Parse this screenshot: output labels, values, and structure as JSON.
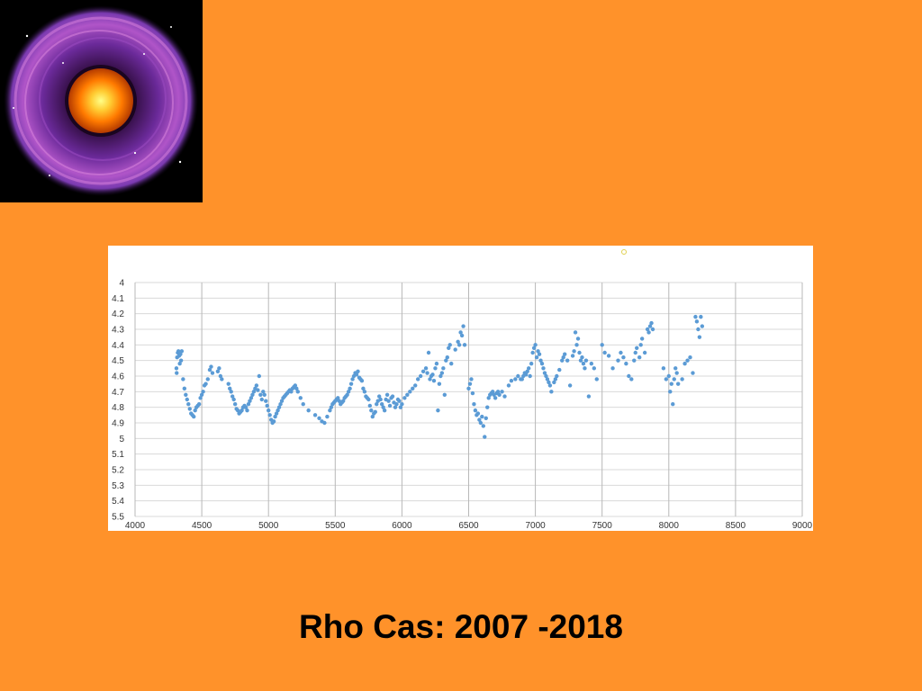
{
  "slide": {
    "caption": "Rho Cas: 2007 -2018",
    "background_color": "#FF922A",
    "image_icon": "nebula-star-image"
  },
  "chart_data": {
    "type": "scatter",
    "title": "",
    "xlabel": "",
    "ylabel": "",
    "xlim": [
      4000,
      9000
    ],
    "ylim": [
      5.5,
      4.0
    ],
    "y_inverted": true,
    "grid": true,
    "marker_color": "#5B9BD5",
    "x_ticks": [
      "4000",
      "4500",
      "5000",
      "5500",
      "6000",
      "6500",
      "7000",
      "7500",
      "8000",
      "8500",
      "9000"
    ],
    "y_ticks": [
      "4",
      "4.1",
      "4.2",
      "4.3",
      "4.4",
      "4.5",
      "4.6",
      "4.7",
      "4.8",
      "4.9",
      "5",
      "5.1",
      "5.2",
      "5.3",
      "5.4",
      "5.5"
    ],
    "series": [
      {
        "points": [
          [
            4310,
            4.55
          ],
          [
            4315,
            4.48
          ],
          [
            4320,
            4.45
          ],
          [
            4325,
            4.44
          ],
          [
            4330,
            4.47
          ],
          [
            4335,
            4.52
          ],
          [
            4312,
            4.58
          ],
          [
            4340,
            4.46
          ],
          [
            4345,
            4.5
          ],
          [
            4350,
            4.44
          ],
          [
            4360,
            4.62
          ],
          [
            4370,
            4.68
          ],
          [
            4380,
            4.72
          ],
          [
            4390,
            4.75
          ],
          [
            4400,
            4.78
          ],
          [
            4410,
            4.81
          ],
          [
            4420,
            4.84
          ],
          [
            4430,
            4.85
          ],
          [
            4440,
            4.86
          ],
          [
            4450,
            4.82
          ],
          [
            4460,
            4.8
          ],
          [
            4470,
            4.79
          ],
          [
            4480,
            4.78
          ],
          [
            4490,
            4.74
          ],
          [
            4500,
            4.72
          ],
          [
            4510,
            4.7
          ],
          [
            4520,
            4.66
          ],
          [
            4530,
            4.65
          ],
          [
            4545,
            4.62
          ],
          [
            4560,
            4.56
          ],
          [
            4570,
            4.54
          ],
          [
            4580,
            4.58
          ],
          [
            4620,
            4.57
          ],
          [
            4630,
            4.55
          ],
          [
            4640,
            4.6
          ],
          [
            4650,
            4.62
          ],
          [
            4700,
            4.65
          ],
          [
            4710,
            4.68
          ],
          [
            4720,
            4.7
          ],
          [
            4730,
            4.73
          ],
          [
            4740,
            4.75
          ],
          [
            4750,
            4.78
          ],
          [
            4760,
            4.81
          ],
          [
            4770,
            4.82
          ],
          [
            4780,
            4.84
          ],
          [
            4790,
            4.83
          ],
          [
            4800,
            4.82
          ],
          [
            4810,
            4.8
          ],
          [
            4820,
            4.79
          ],
          [
            4830,
            4.8
          ],
          [
            4840,
            4.82
          ],
          [
            4850,
            4.78
          ],
          [
            4860,
            4.76
          ],
          [
            4870,
            4.74
          ],
          [
            4880,
            4.72
          ],
          [
            4890,
            4.7
          ],
          [
            4900,
            4.68
          ],
          [
            4910,
            4.66
          ],
          [
            4920,
            4.69
          ],
          [
            4930,
            4.6
          ],
          [
            4940,
            4.72
          ],
          [
            4950,
            4.75
          ],
          [
            4960,
            4.7
          ],
          [
            4970,
            4.72
          ],
          [
            4980,
            4.76
          ],
          [
            4990,
            4.79
          ],
          [
            5000,
            4.82
          ],
          [
            5010,
            4.85
          ],
          [
            5020,
            4.88
          ],
          [
            5030,
            4.9
          ],
          [
            5040,
            4.89
          ],
          [
            5050,
            4.86
          ],
          [
            5060,
            4.84
          ],
          [
            5070,
            4.82
          ],
          [
            5080,
            4.8
          ],
          [
            5090,
            4.78
          ],
          [
            5100,
            4.76
          ],
          [
            5110,
            4.74
          ],
          [
            5120,
            4.73
          ],
          [
            5130,
            4.72
          ],
          [
            5140,
            4.71
          ],
          [
            5150,
            4.7
          ],
          [
            5160,
            4.69
          ],
          [
            5170,
            4.7
          ],
          [
            5180,
            4.68
          ],
          [
            5190,
            4.67
          ],
          [
            5200,
            4.66
          ],
          [
            5210,
            4.68
          ],
          [
            5220,
            4.7
          ],
          [
            5240,
            4.74
          ],
          [
            5260,
            4.78
          ],
          [
            5300,
            4.82
          ],
          [
            5350,
            4.85
          ],
          [
            5380,
            4.87
          ],
          [
            5400,
            4.89
          ],
          [
            5420,
            4.9
          ],
          [
            5440,
            4.86
          ],
          [
            5460,
            4.82
          ],
          [
            5470,
            4.8
          ],
          [
            5480,
            4.78
          ],
          [
            5490,
            4.77
          ],
          [
            5500,
            4.76
          ],
          [
            5510,
            4.75
          ],
          [
            5520,
            4.74
          ],
          [
            5530,
            4.76
          ],
          [
            5540,
            4.78
          ],
          [
            5550,
            4.77
          ],
          [
            5560,
            4.76
          ],
          [
            5570,
            4.74
          ],
          [
            5580,
            4.73
          ],
          [
            5590,
            4.72
          ],
          [
            5600,
            4.7
          ],
          [
            5610,
            4.68
          ],
          [
            5620,
            4.65
          ],
          [
            5630,
            4.62
          ],
          [
            5640,
            4.6
          ],
          [
            5650,
            4.58
          ],
          [
            5660,
            4.59
          ],
          [
            5670,
            4.57
          ],
          [
            5680,
            4.61
          ],
          [
            5690,
            4.62
          ],
          [
            5700,
            4.63
          ],
          [
            5710,
            4.68
          ],
          [
            5720,
            4.7
          ],
          [
            5730,
            4.73
          ],
          [
            5740,
            4.74
          ],
          [
            5750,
            4.75
          ],
          [
            5760,
            4.79
          ],
          [
            5770,
            4.82
          ],
          [
            5780,
            4.86
          ],
          [
            5790,
            4.84
          ],
          [
            5800,
            4.83
          ],
          [
            5810,
            4.78
          ],
          [
            5820,
            4.76
          ],
          [
            5830,
            4.73
          ],
          [
            5840,
            4.75
          ],
          [
            5850,
            4.78
          ],
          [
            5860,
            4.8
          ],
          [
            5870,
            4.82
          ],
          [
            5880,
            4.75
          ],
          [
            5890,
            4.72
          ],
          [
            5900,
            4.76
          ],
          [
            5910,
            4.79
          ],
          [
            5920,
            4.74
          ],
          [
            5930,
            4.73
          ],
          [
            5940,
            4.77
          ],
          [
            5950,
            4.8
          ],
          [
            5960,
            4.78
          ],
          [
            5970,
            4.75
          ],
          [
            5980,
            4.76
          ],
          [
            5990,
            4.8
          ],
          [
            6000,
            4.78
          ],
          [
            6020,
            4.74
          ],
          [
            6040,
            4.72
          ],
          [
            6060,
            4.7
          ],
          [
            6080,
            4.68
          ],
          [
            6100,
            4.66
          ],
          [
            6120,
            4.62
          ],
          [
            6140,
            4.6
          ],
          [
            6160,
            4.57
          ],
          [
            6180,
            4.55
          ],
          [
            6190,
            4.58
          ],
          [
            6200,
            4.45
          ],
          [
            6210,
            4.62
          ],
          [
            6220,
            4.6
          ],
          [
            6230,
            4.59
          ],
          [
            6240,
            4.63
          ],
          [
            6250,
            4.55
          ],
          [
            6260,
            4.52
          ],
          [
            6270,
            4.82
          ],
          [
            6280,
            4.65
          ],
          [
            6290,
            4.6
          ],
          [
            6300,
            4.58
          ],
          [
            6310,
            4.55
          ],
          [
            6320,
            4.72
          ],
          [
            6330,
            4.5
          ],
          [
            6340,
            4.48
          ],
          [
            6350,
            4.42
          ],
          [
            6360,
            4.4
          ],
          [
            6370,
            4.52
          ],
          [
            6400,
            4.43
          ],
          [
            6420,
            4.38
          ],
          [
            6430,
            4.4
          ],
          [
            6440,
            4.32
          ],
          [
            6450,
            4.34
          ],
          [
            6460,
            4.28
          ],
          [
            6470,
            4.4
          ],
          [
            6500,
            4.68
          ],
          [
            6510,
            4.65
          ],
          [
            6520,
            4.62
          ],
          [
            6530,
            4.71
          ],
          [
            6540,
            4.78
          ],
          [
            6550,
            4.82
          ],
          [
            6560,
            4.85
          ],
          [
            6570,
            4.84
          ],
          [
            6580,
            4.88
          ],
          [
            6590,
            4.9
          ],
          [
            6600,
            4.86
          ],
          [
            6610,
            4.92
          ],
          [
            6620,
            4.99
          ],
          [
            6630,
            4.87
          ],
          [
            6640,
            4.8
          ],
          [
            6650,
            4.74
          ],
          [
            6660,
            4.72
          ],
          [
            6670,
            4.71
          ],
          [
            6680,
            4.7
          ],
          [
            6690,
            4.72
          ],
          [
            6700,
            4.74
          ],
          [
            6710,
            4.71
          ],
          [
            6720,
            4.7
          ],
          [
            6730,
            4.72
          ],
          [
            6750,
            4.7
          ],
          [
            6770,
            4.73
          ],
          [
            6800,
            4.66
          ],
          [
            6820,
            4.63
          ],
          [
            6850,
            4.62
          ],
          [
            6870,
            4.6
          ],
          [
            6890,
            4.62
          ],
          [
            6900,
            4.62
          ],
          [
            6910,
            4.6
          ],
          [
            6920,
            4.58
          ],
          [
            6930,
            4.59
          ],
          [
            6940,
            4.57
          ],
          [
            6950,
            4.55
          ],
          [
            6960,
            4.6
          ],
          [
            6970,
            4.52
          ],
          [
            6980,
            4.45
          ],
          [
            6990,
            4.42
          ],
          [
            7000,
            4.4
          ],
          [
            7010,
            4.48
          ],
          [
            7020,
            4.44
          ],
          [
            7030,
            4.46
          ],
          [
            7040,
            4.5
          ],
          [
            7050,
            4.52
          ],
          [
            7060,
            4.55
          ],
          [
            7070,
            4.58
          ],
          [
            7080,
            4.6
          ],
          [
            7090,
            4.62
          ],
          [
            7100,
            4.64
          ],
          [
            7110,
            4.66
          ],
          [
            7120,
            4.7
          ],
          [
            7140,
            4.64
          ],
          [
            7150,
            4.62
          ],
          [
            7160,
            4.6
          ],
          [
            7180,
            4.56
          ],
          [
            7200,
            4.5
          ],
          [
            7210,
            4.48
          ],
          [
            7220,
            4.46
          ],
          [
            7240,
            4.5
          ],
          [
            7260,
            4.66
          ],
          [
            7280,
            4.47
          ],
          [
            7290,
            4.44
          ],
          [
            7300,
            4.32
          ],
          [
            7310,
            4.4
          ],
          [
            7320,
            4.36
          ],
          [
            7330,
            4.45
          ],
          [
            7340,
            4.5
          ],
          [
            7350,
            4.48
          ],
          [
            7360,
            4.52
          ],
          [
            7370,
            4.55
          ],
          [
            7380,
            4.5
          ],
          [
            7400,
            4.73
          ],
          [
            7420,
            4.52
          ],
          [
            7440,
            4.55
          ],
          [
            7460,
            4.62
          ],
          [
            7500,
            4.4
          ],
          [
            7520,
            4.45
          ],
          [
            7550,
            4.47
          ],
          [
            7580,
            4.55
          ],
          [
            7620,
            4.5
          ],
          [
            7640,
            4.45
          ],
          [
            7660,
            4.48
          ],
          [
            7680,
            4.52
          ],
          [
            7700,
            4.6
          ],
          [
            7720,
            4.62
          ],
          [
            7740,
            4.5
          ],
          [
            7750,
            4.45
          ],
          [
            7760,
            4.42
          ],
          [
            7780,
            4.48
          ],
          [
            7790,
            4.4
          ],
          [
            7800,
            4.36
          ],
          [
            7820,
            4.45
          ],
          [
            7840,
            4.3
          ],
          [
            7850,
            4.32
          ],
          [
            7860,
            4.28
          ],
          [
            7870,
            4.26
          ],
          [
            7880,
            4.3
          ],
          [
            7960,
            4.55
          ],
          [
            7980,
            4.62
          ],
          [
            8000,
            4.6
          ],
          [
            8010,
            4.7
          ],
          [
            8020,
            4.65
          ],
          [
            8030,
            4.78
          ],
          [
            8040,
            4.62
          ],
          [
            8050,
            4.55
          ],
          [
            8060,
            4.58
          ],
          [
            8070,
            4.65
          ],
          [
            8100,
            4.62
          ],
          [
            8120,
            4.52
          ],
          [
            8140,
            4.5
          ],
          [
            8160,
            4.48
          ],
          [
            8180,
            4.58
          ],
          [
            8200,
            4.22
          ],
          [
            8210,
            4.25
          ],
          [
            8220,
            4.3
          ],
          [
            8230,
            4.35
          ],
          [
            8240,
            4.22
          ],
          [
            8250,
            4.28
          ]
        ]
      }
    ]
  }
}
